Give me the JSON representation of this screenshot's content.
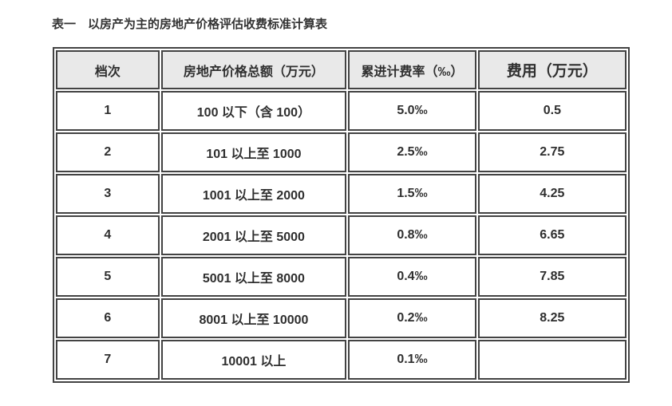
{
  "caption": "表一　以房产为主的房地产价格评估收费标准计算表",
  "colors": {
    "border": "#434343",
    "header_bg": "#e9e9e9",
    "text": "#2f2f2f",
    "background": "#ffffff"
  },
  "table": {
    "columns": [
      "档次",
      "房地产价格总额（万元）",
      "累进计费率（‰）",
      "费用（万元）"
    ],
    "rows": [
      [
        "1",
        "100 以下（含 100）",
        "5.0‰",
        "0.5"
      ],
      [
        "2",
        "101 以上至 1000",
        "2.5‰",
        "2.75"
      ],
      [
        "3",
        "1001 以上至 2000",
        "1.5‰",
        "4.25"
      ],
      [
        "4",
        "2001 以上至 5000",
        "0.8‰",
        "6.65"
      ],
      [
        "5",
        "5001 以上至 8000",
        "0.4‰",
        "7.85"
      ],
      [
        "6",
        "8001 以上至 10000",
        "0.2‰",
        "8.25"
      ],
      [
        "7",
        "10001 以上",
        "0.1‰",
        ""
      ]
    ]
  }
}
